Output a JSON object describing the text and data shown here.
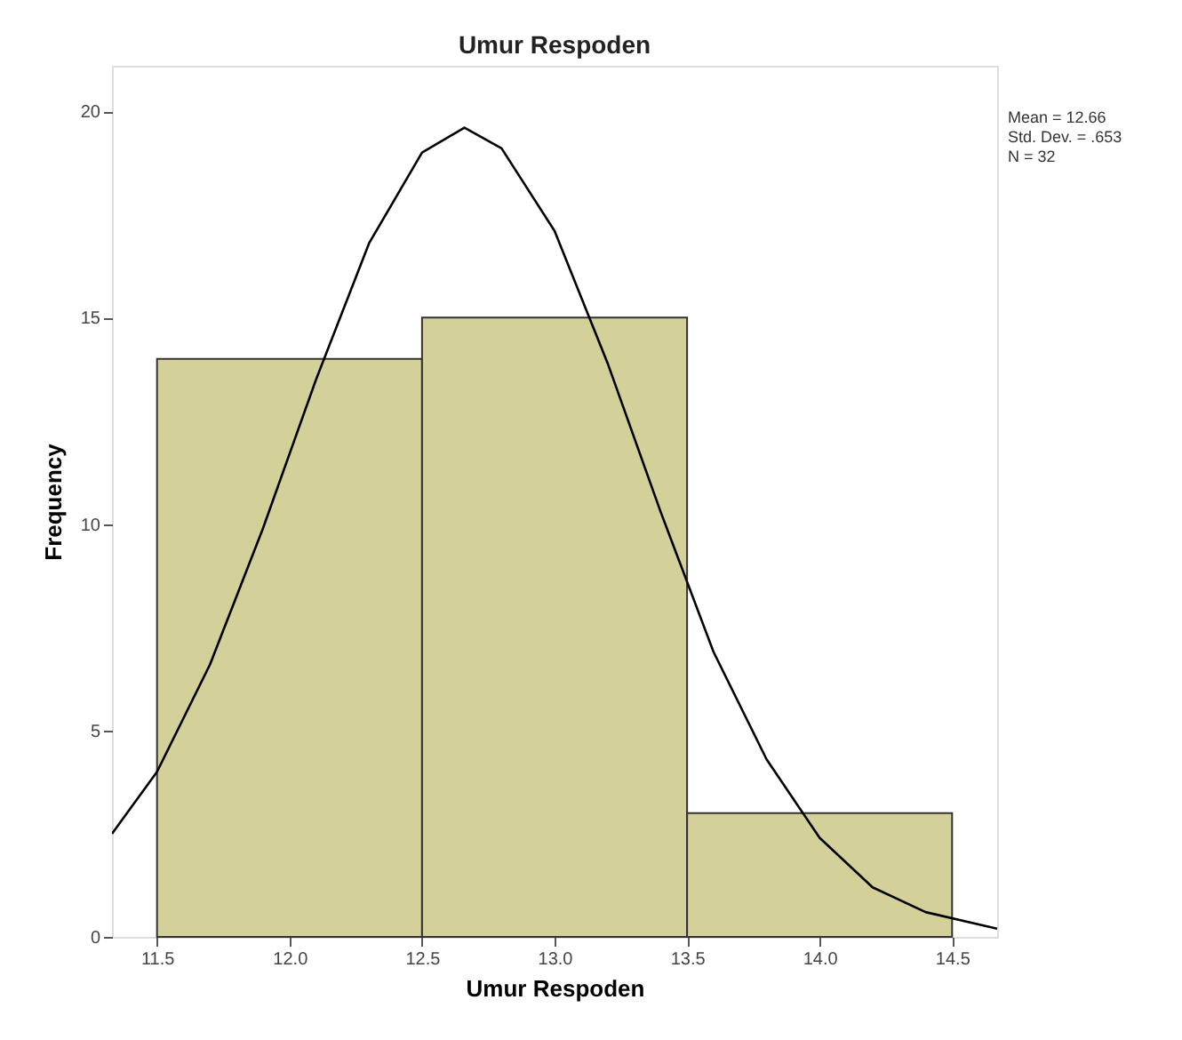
{
  "chart_data": {
    "type": "histogram",
    "title": "Umur Respoden",
    "xlabel": "Umur Respoden",
    "ylabel": "Frequency",
    "bins": [
      11.5,
      12.5,
      13.5,
      14.5
    ],
    "values": [
      14,
      15,
      3
    ],
    "color": "#d3d09a",
    "series": [
      {
        "type": "line",
        "color": "#000000",
        "x": [
          11.33,
          11.5,
          11.7,
          11.9,
          12.1,
          12.3,
          12.5,
          12.66,
          12.8,
          13.0,
          13.2,
          13.4,
          13.6,
          13.8,
          14.0,
          14.2,
          14.4,
          14.67
        ],
        "values": [
          2.5,
          4.0,
          6.6,
          9.9,
          13.5,
          16.8,
          19.0,
          19.6,
          19.1,
          17.1,
          13.9,
          10.3,
          6.9,
          4.3,
          2.4,
          1.2,
          0.6,
          0.2
        ]
      }
    ],
    "xlim": [
      11.33,
      14.67
    ],
    "ylim": [
      0,
      21.1
    ],
    "xticks": [
      11.5,
      {
        "value": 12,
        "label": "12.0"
      },
      12.5,
      {
        "value": 13,
        "label": "13.0"
      },
      13.5,
      {
        "value": 14,
        "label": "14.0"
      },
      14.5
    ],
    "yticks": [
      0,
      5,
      10,
      15,
      20
    ],
    "annotations": [
      "Mean = 12.66",
      "Std. Dev. = .653",
      "N = 32"
    ],
    "grid": false
  }
}
